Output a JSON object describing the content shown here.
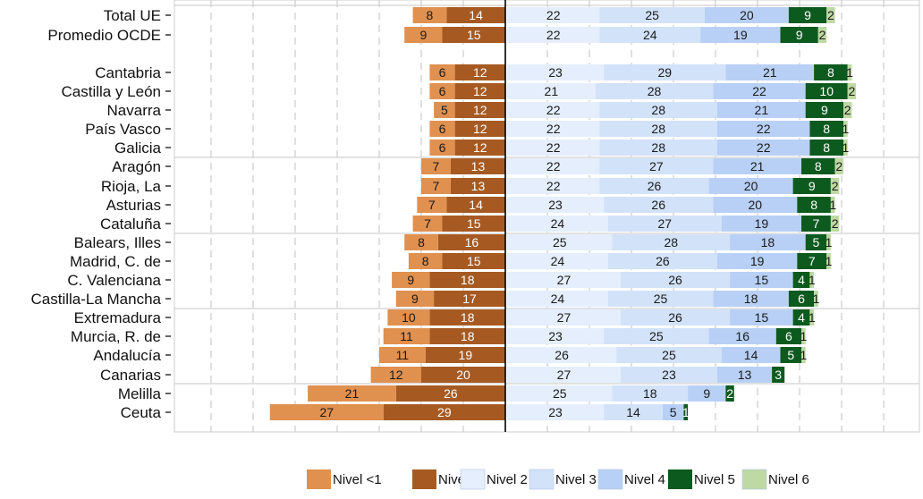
{
  "chart_data": {
    "type": "bar",
    "orientation": "horizontal-diverging",
    "categories": [
      "Total UE",
      "Promedio OCDE",
      "Cantabria",
      "Castilla y León",
      "Navarra",
      "País Vasco",
      "Galicia",
      "Aragón",
      "Rioja, La",
      "Asturias",
      "Cataluña",
      "Balears, Illes",
      "Madrid, C. de",
      "C. Valenciana",
      "Castilla-La Mancha",
      "Extremadura",
      "Murcia, R. de",
      "Andalucía",
      "Canarias",
      "Melilla",
      "Ceuta"
    ],
    "series": [
      {
        "name": "Nivel <1",
        "color": "#e0904f",
        "side": "left",
        "values": [
          8,
          9,
          6,
          6,
          5,
          6,
          6,
          7,
          7,
          7,
          7,
          8,
          8,
          9,
          9,
          10,
          11,
          11,
          12,
          21,
          27
        ]
      },
      {
        "name": "Nivel 1",
        "color": "#a65a22",
        "side": "left",
        "values": [
          14,
          15,
          12,
          12,
          12,
          12,
          12,
          13,
          13,
          14,
          15,
          16,
          15,
          18,
          17,
          18,
          18,
          19,
          20,
          26,
          29
        ]
      },
      {
        "name": "Nivel 2",
        "color": "#e4eefc",
        "side": "right",
        "values": [
          22,
          22,
          23,
          21,
          22,
          22,
          22,
          22,
          22,
          23,
          24,
          25,
          24,
          27,
          24,
          27,
          23,
          26,
          27,
          25,
          23
        ]
      },
      {
        "name": "Nivel 3",
        "color": "#d2e2f9",
        "side": "right",
        "values": [
          25,
          24,
          29,
          28,
          28,
          28,
          28,
          27,
          26,
          26,
          27,
          28,
          26,
          26,
          25,
          26,
          25,
          25,
          23,
          18,
          14
        ]
      },
      {
        "name": "Nivel 4",
        "color": "#b8d0f5",
        "side": "right",
        "values": [
          20,
          19,
          21,
          22,
          21,
          22,
          22,
          21,
          20,
          20,
          19,
          18,
          19,
          15,
          18,
          15,
          16,
          14,
          13,
          9,
          5
        ]
      },
      {
        "name": "Nivel 5",
        "color": "#0d5a1f",
        "side": "right",
        "values": [
          9,
          9,
          8,
          10,
          9,
          8,
          8,
          8,
          9,
          8,
          7,
          5,
          7,
          4,
          6,
          4,
          6,
          5,
          3,
          2,
          1
        ]
      },
      {
        "name": "Nivel 6",
        "color": "#bfd9a4",
        "side": "right",
        "values": [
          2,
          2,
          1,
          2,
          2,
          1,
          1,
          2,
          2,
          1,
          2,
          1,
          1,
          1,
          1,
          1,
          1,
          1,
          0,
          0,
          0
        ]
      }
    ],
    "legend_position": "bottom",
    "grid": true
  }
}
